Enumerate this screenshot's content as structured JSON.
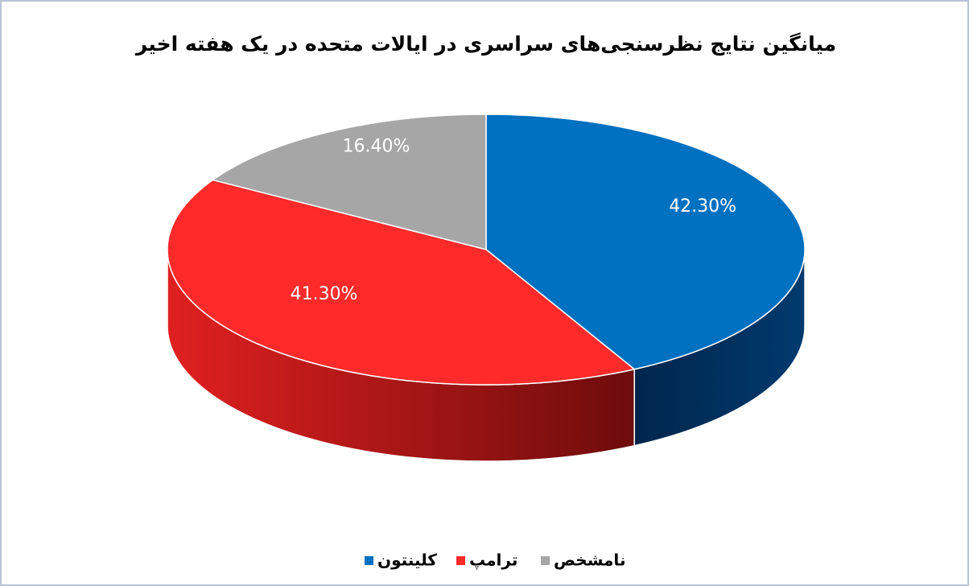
{
  "chart_data": {
    "type": "pie",
    "title": "میانگین نتایج نظرسنجی‌های سراسری در ایالات متحده در یک هفته اخیر",
    "categories": [
      "کلینتون",
      "ترامپ",
      "نامشخص"
    ],
    "values": [
      42.3,
      41.3,
      16.4
    ],
    "value_labels": [
      "42.30%",
      "41.30%",
      "16.40%"
    ],
    "colors": [
      "#0070c0",
      "#ff2a2a",
      "#a6a6a6"
    ],
    "legend": "bottom"
  }
}
